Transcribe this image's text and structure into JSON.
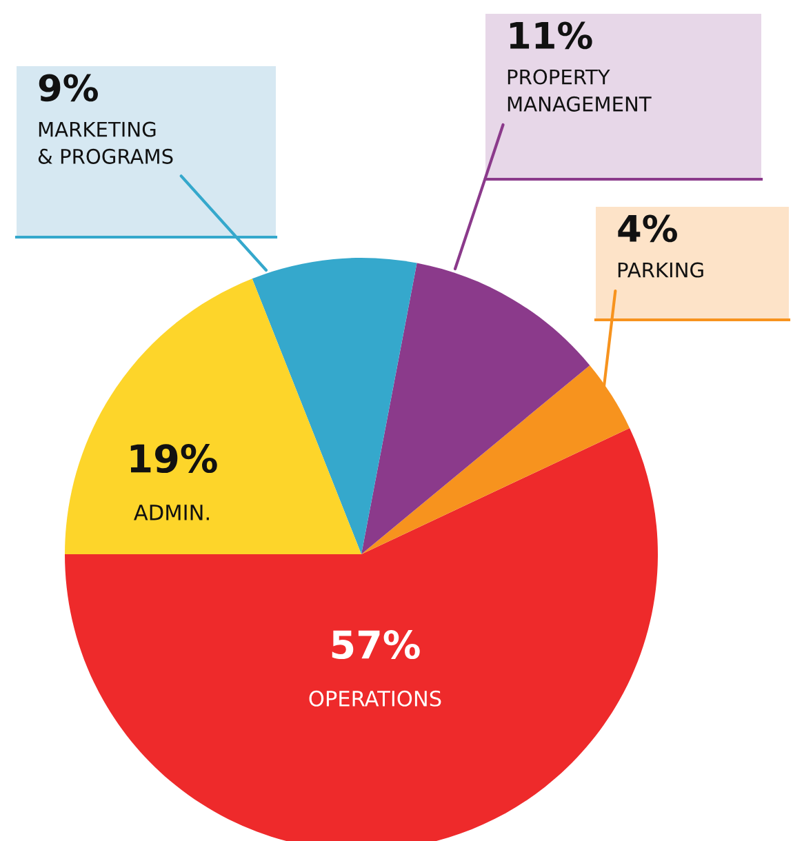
{
  "chart_data": {
    "type": "pie",
    "categories": [
      "OPERATIONS",
      "PARKING",
      "PROPERTY\nMANAGEMENT",
      "MARKETING\n& PROGRAMS",
      "ADMIN."
    ],
    "values": [
      57,
      4,
      11,
      9,
      19
    ],
    "colors": [
      "#ee2a2b",
      "#f7931e",
      "#8b3a8b",
      "#35a8cc",
      "#fdd52a"
    ],
    "value_labels": [
      "57%",
      "4%",
      "11%",
      "9%",
      "19%"
    ],
    "legend": false
  }
}
